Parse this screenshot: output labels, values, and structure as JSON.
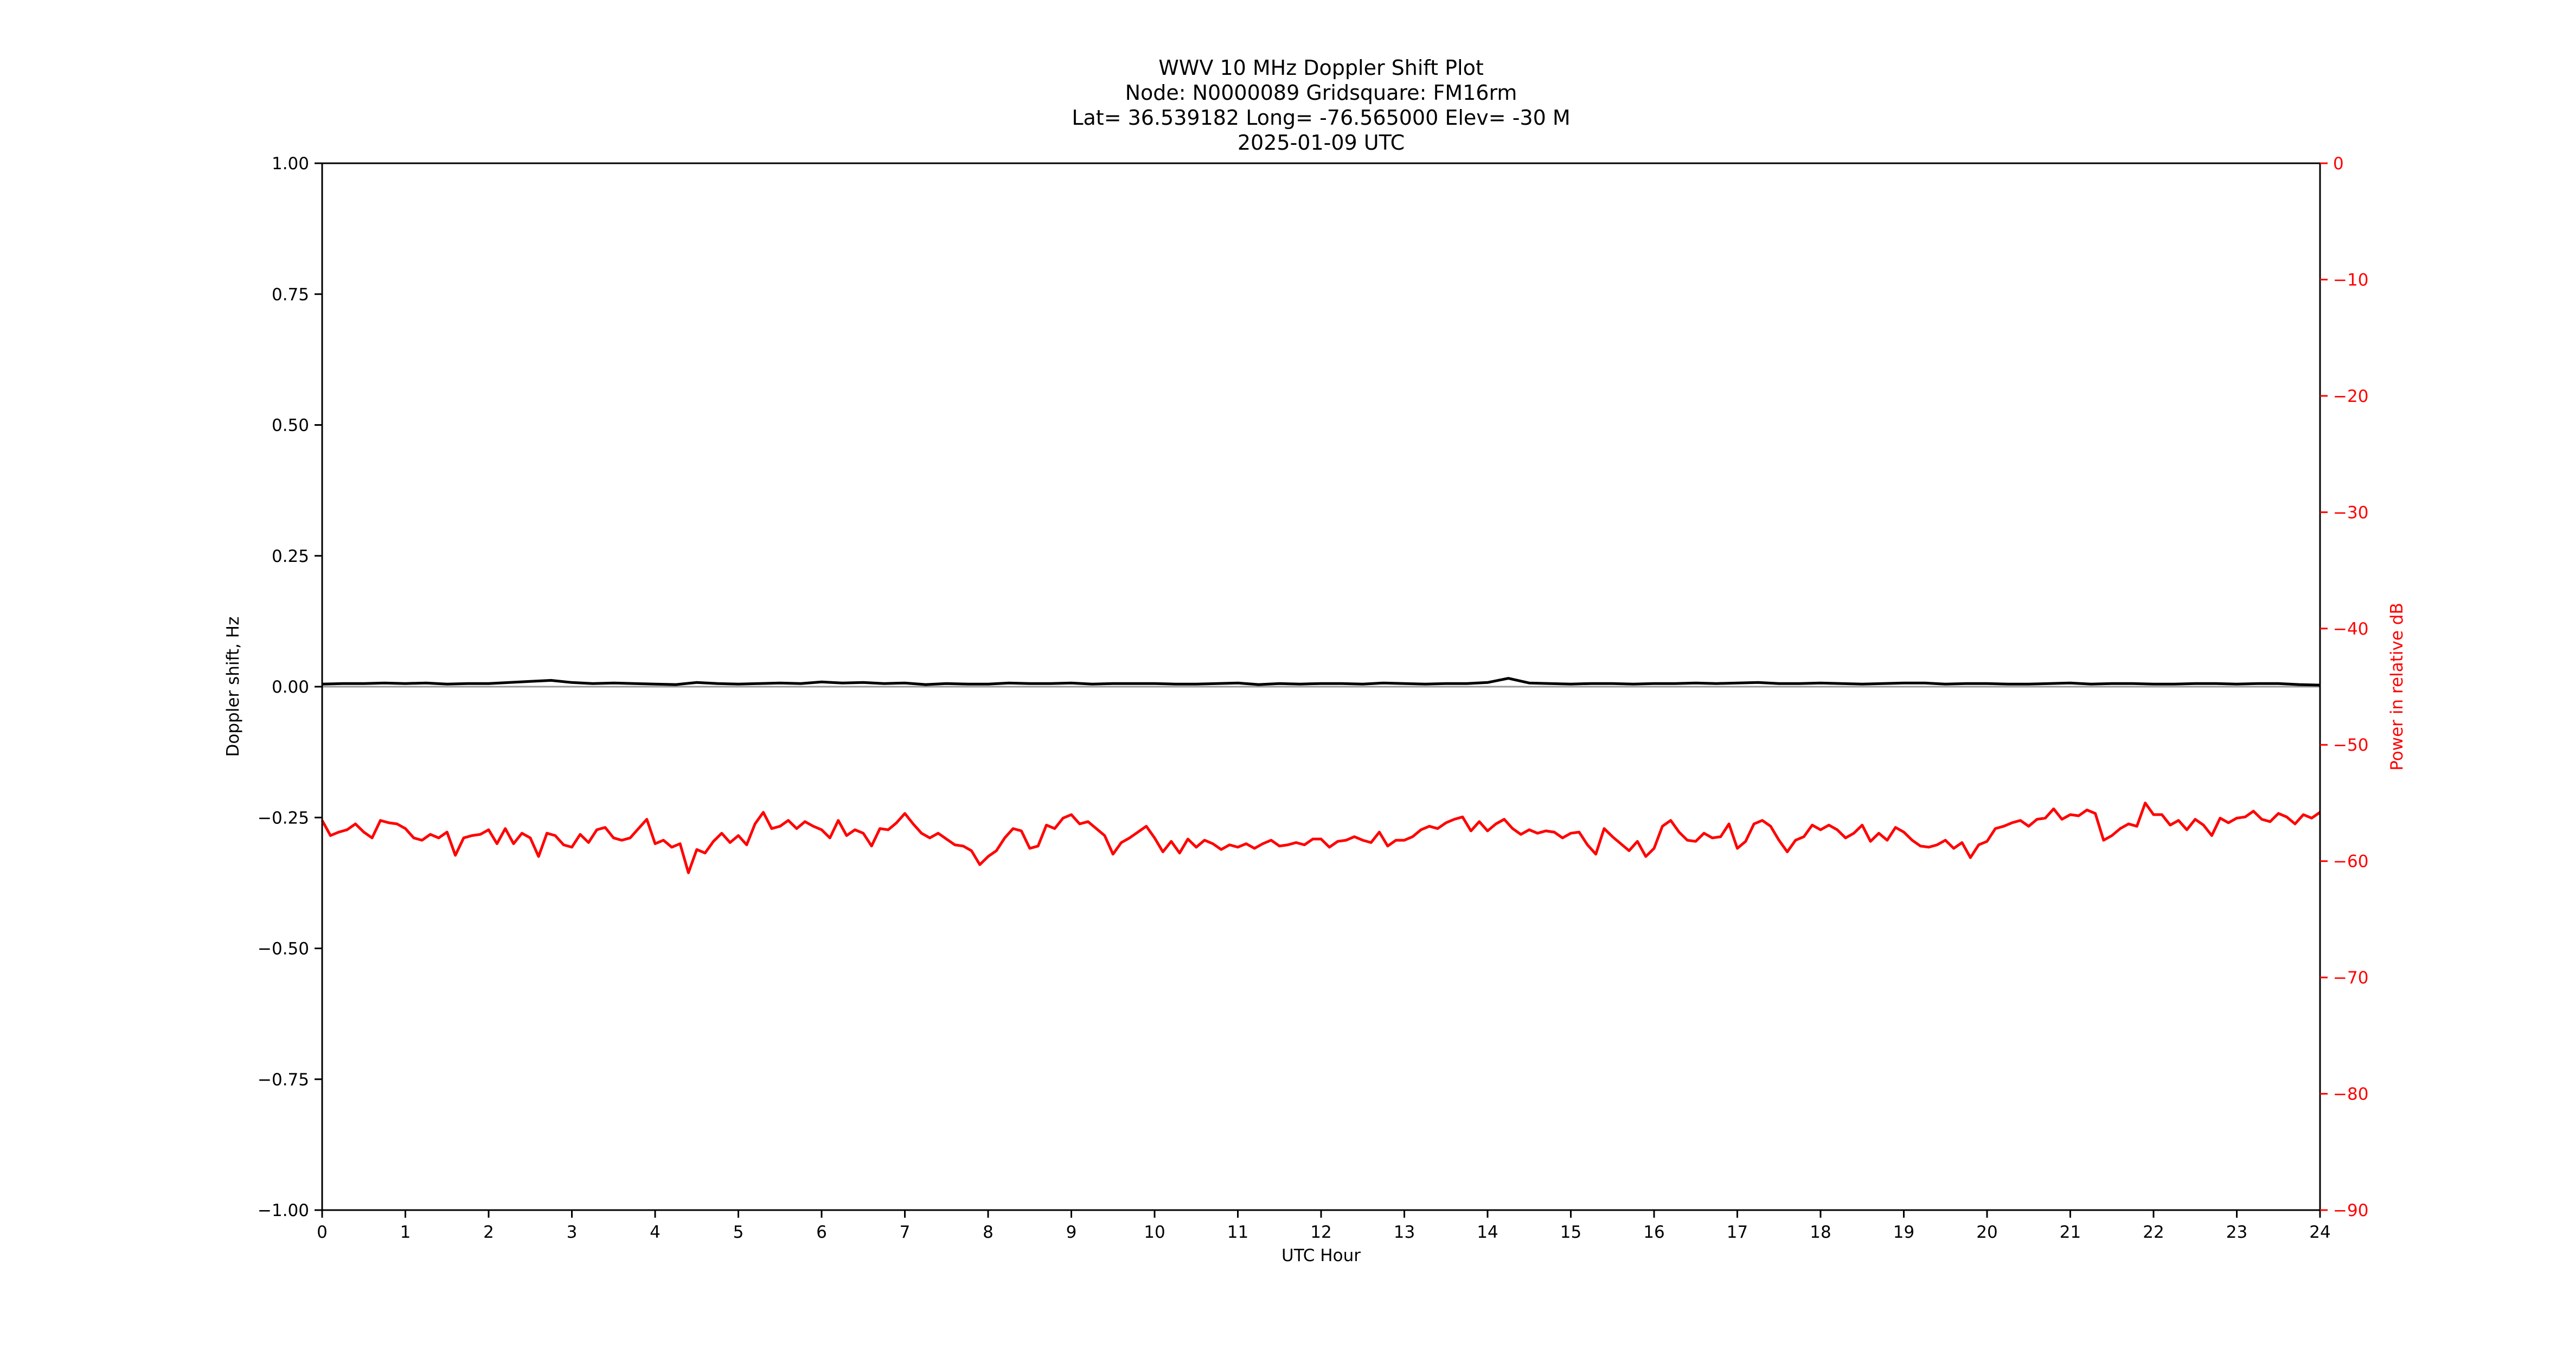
{
  "chart_data": {
    "type": "line",
    "title_lines": [
      "WWV 10 MHz Doppler Shift Plot",
      "Node:  N0000089     Gridsquare:  FM16rm",
      "Lat= 36.539182    Long= -76.565000    Elev= -30 M",
      "2025-01-09  UTC"
    ],
    "xlabel": "UTC Hour",
    "ylabel": "Doppler shift, Hz",
    "y2label": "Power in relative dB",
    "xlim": [
      0,
      24
    ],
    "ylim": [
      -1.0,
      1.0
    ],
    "y2lim": [
      -90,
      0
    ],
    "x_ticks": [
      "0",
      "1",
      "2",
      "3",
      "4",
      "5",
      "6",
      "7",
      "8",
      "9",
      "10",
      "11",
      "12",
      "13",
      "14",
      "15",
      "16",
      "17",
      "18",
      "19",
      "20",
      "21",
      "22",
      "23",
      "24"
    ],
    "y_ticks": [
      "1.00",
      "0.75",
      "0.50",
      "0.25",
      "0.00",
      "−0.25",
      "−0.50",
      "−0.75",
      "−1.00"
    ],
    "y2_ticks": [
      "0",
      "−10",
      "−20",
      "−30",
      "−40",
      "−50",
      "−60",
      "−70",
      "−80",
      "−90"
    ],
    "colors": {
      "doppler": "#000000",
      "power": "#ff0000",
      "axis": "#000000",
      "right_axis": "#ff0000",
      "zero_line": "#999999"
    },
    "series": [
      {
        "axis": "left",
        "x": [
          0,
          0.25,
          0.5,
          0.75,
          1,
          1.25,
          1.5,
          1.75,
          2,
          2.25,
          2.5,
          2.75,
          3,
          3.25,
          3.5,
          3.75,
          4,
          4.25,
          4.5,
          4.75,
          5,
          5.25,
          5.5,
          5.75,
          6,
          6.25,
          6.5,
          6.75,
          7,
          7.25,
          7.5,
          7.75,
          8,
          8.25,
          8.5,
          8.75,
          9,
          9.25,
          9.5,
          9.75,
          10,
          10.25,
          10.5,
          10.75,
          11,
          11.25,
          11.5,
          11.75,
          12,
          12.25,
          12.5,
          12.75,
          13,
          13.25,
          13.5,
          13.75,
          14,
          14.25,
          14.5,
          14.75,
          15,
          15.25,
          15.5,
          15.75,
          16,
          16.25,
          16.5,
          16.75,
          17,
          17.25,
          17.5,
          17.75,
          18,
          18.25,
          18.5,
          18.75,
          19,
          19.25,
          19.5,
          19.75,
          20,
          20.25,
          20.5,
          20.75,
          21,
          21.25,
          21.5,
          21.75,
          22,
          22.25,
          22.5,
          22.75,
          23,
          23.25,
          23.5,
          23.75,
          24
        ],
        "values": [
          0.005,
          0.006,
          0.006,
          0.007,
          0.006,
          0.007,
          0.005,
          0.006,
          0.006,
          0.008,
          0.01,
          0.012,
          0.008,
          0.006,
          0.007,
          0.006,
          0.005,
          0.004,
          0.008,
          0.006,
          0.005,
          0.006,
          0.007,
          0.006,
          0.009,
          0.007,
          0.008,
          0.006,
          0.007,
          0.004,
          0.006,
          0.005,
          0.005,
          0.007,
          0.006,
          0.006,
          0.007,
          0.005,
          0.006,
          0.006,
          0.006,
          0.005,
          0.005,
          0.006,
          0.007,
          0.004,
          0.006,
          0.005,
          0.006,
          0.006,
          0.005,
          0.007,
          0.006,
          0.005,
          0.006,
          0.006,
          0.008,
          0.016,
          0.007,
          0.006,
          0.005,
          0.006,
          0.006,
          0.005,
          0.006,
          0.006,
          0.007,
          0.006,
          0.007,
          0.008,
          0.006,
          0.006,
          0.007,
          0.006,
          0.005,
          0.006,
          0.007,
          0.007,
          0.005,
          0.006,
          0.006,
          0.005,
          0.005,
          0.006,
          0.007,
          0.005,
          0.006,
          0.006,
          0.005,
          0.005,
          0.006,
          0.006,
          0.005,
          0.006,
          0.006,
          0.004,
          0.003
        ]
      },
      {
        "axis": "right",
        "x": [
          0,
          0.1,
          0.2,
          0.3,
          0.4,
          0.5,
          0.6,
          0.7,
          0.8,
          0.9,
          1,
          1.1,
          1.2,
          1.3,
          1.4,
          1.5,
          1.6,
          1.7,
          1.8,
          1.9,
          2,
          2.1,
          2.2,
          2.3,
          2.4,
          2.5,
          2.6,
          2.7,
          2.8,
          2.9,
          3,
          3.1,
          3.2,
          3.3,
          3.4,
          3.5,
          3.6,
          3.7,
          3.8,
          3.9,
          4,
          4.1,
          4.2,
          4.3,
          4.4,
          4.5,
          4.6,
          4.7,
          4.8,
          4.9,
          5,
          5.1,
          5.2,
          5.3,
          5.4,
          5.5,
          5.6,
          5.7,
          5.8,
          5.9,
          6,
          6.1,
          6.2,
          6.3,
          6.4,
          6.5,
          6.6,
          6.7,
          6.8,
          6.9,
          7,
          7.1,
          7.2,
          7.3,
          7.4,
          7.5,
          7.6,
          7.7,
          7.8,
          7.9,
          8,
          8.1,
          8.2,
          8.3,
          8.4,
          8.5,
          8.6,
          8.7,
          8.8,
          8.9,
          9,
          9.1,
          9.2,
          9.3,
          9.4,
          9.5,
          9.6,
          9.7,
          9.8,
          9.9,
          10,
          10.1,
          10.2,
          10.3,
          10.4,
          10.5,
          10.6,
          10.7,
          10.8,
          10.9,
          11,
          11.1,
          11.2,
          11.3,
          11.4,
          11.5,
          11.6,
          11.7,
          11.8,
          11.9,
          12,
          12.1,
          12.2,
          12.3,
          12.4,
          12.5,
          12.6,
          12.7,
          12.8,
          12.9,
          13,
          13.1,
          13.2,
          13.3,
          13.4,
          13.5,
          13.6,
          13.7,
          13.8,
          13.9,
          14,
          14.1,
          14.2,
          14.3,
          14.4,
          14.5,
          14.6,
          14.7,
          14.8,
          14.9,
          15,
          15.1,
          15.2,
          15.3,
          15.4,
          15.5,
          15.6,
          15.7,
          15.8,
          15.9,
          16,
          16.1,
          16.2,
          16.3,
          16.4,
          16.5,
          16.6,
          16.7,
          16.8,
          16.9,
          17,
          17.1,
          17.2,
          17.3,
          17.4,
          17.5,
          17.6,
          17.7,
          17.8,
          17.9,
          18,
          18.1,
          18.2,
          18.3,
          18.4,
          18.5,
          18.6,
          18.7,
          18.8,
          18.9,
          19,
          19.1,
          19.2,
          19.3,
          19.4,
          19.5,
          19.6,
          19.7,
          19.8,
          19.9,
          20,
          20.1,
          20.2,
          20.3,
          20.4,
          20.5,
          20.6,
          20.7,
          20.8,
          20.9,
          21,
          21.1,
          21.2,
          21.3,
          21.4,
          21.5,
          21.6,
          21.7,
          21.8,
          21.9,
          22,
          22.1,
          22.2,
          22.3,
          22.4,
          22.5,
          22.6,
          22.7,
          22.8,
          22.9,
          23,
          23.1,
          23.2,
          23.3,
          23.4,
          23.5,
          23.6,
          23.7,
          23.8,
          23.9,
          24
        ],
        "values": [
          -56.5,
          -57.8,
          -57.5,
          -57.3,
          -56.8,
          -57.5,
          -58.0,
          -56.5,
          -56.7,
          -56.8,
          -57.2,
          -58.0,
          -58.2,
          -57.7,
          -58.0,
          -57.5,
          -59.5,
          -58.0,
          -57.8,
          -57.7,
          -57.3,
          -58.5,
          -57.2,
          -58.5,
          -57.6,
          -58.0,
          -59.6,
          -57.6,
          -57.8,
          -58.6,
          -58.8,
          -57.7,
          -58.4,
          -57.3,
          -57.1,
          -58.0,
          -58.2,
          -58.0,
          -57.2,
          -56.4,
          -58.5,
          -58.2,
          -58.8,
          -58.5,
          -61.0,
          -59.0,
          -59.3,
          -58.3,
          -57.6,
          -58.4,
          -57.8,
          -58.6,
          -56.8,
          -55.8,
          -57.2,
          -57.0,
          -56.5,
          -57.2,
          -56.6,
          -57.0,
          -57.3,
          -58.0,
          -56.5,
          -57.8,
          -57.3,
          -57.6,
          -58.7,
          -57.2,
          -57.3,
          -56.7,
          -55.9,
          -56.8,
          -57.6,
          -58.0,
          -57.6,
          -58.1,
          -58.6,
          -58.7,
          -59.1,
          -60.3,
          -59.6,
          -59.1,
          -58.0,
          -57.2,
          -57.4,
          -58.9,
          -58.7,
          -56.9,
          -57.2,
          -56.3,
          -56.0,
          -56.8,
          -56.6,
          -57.2,
          -57.8,
          -59.4,
          -58.4,
          -58.0,
          -57.5,
          -57.0,
          -58.0,
          -59.2,
          -58.3,
          -59.3,
          -58.1,
          -58.8,
          -58.2,
          -58.5,
          -59.0,
          -58.6,
          -58.8,
          -58.5,
          -58.9,
          -58.5,
          -58.2,
          -58.7,
          -58.6,
          -58.4,
          -58.6,
          -58.1,
          -58.1,
          -58.8,
          -58.3,
          -58.2,
          -57.9,
          -58.2,
          -58.4,
          -57.5,
          -58.7,
          -58.2,
          -58.2,
          -57.9,
          -57.3,
          -57.0,
          -57.2,
          -56.7,
          -56.4,
          -56.2,
          -57.4,
          -56.6,
          -57.4,
          -56.8,
          -56.4,
          -57.2,
          -57.7,
          -57.3,
          -57.6,
          -57.4,
          -57.5,
          -58.0,
          -57.6,
          -57.5,
          -58.6,
          -59.4,
          -57.2,
          -57.9,
          -58.5,
          -59.1,
          -58.3,
          -59.6,
          -58.9,
          -57.0,
          -56.5,
          -57.5,
          -58.2,
          -58.3,
          -57.6,
          -58.0,
          -57.9,
          -56.8,
          -58.9,
          -58.3,
          -56.8,
          -56.5,
          -57.0,
          -58.2,
          -59.2,
          -58.2,
          -57.9,
          -56.9,
          -57.3,
          -56.9,
          -57.3,
          -58.0,
          -57.6,
          -56.9,
          -58.3,
          -57.6,
          -58.2,
          -57.1,
          -57.5,
          -58.2,
          -58.7,
          -58.8,
          -58.6,
          -58.2,
          -58.9,
          -58.4,
          -59.7,
          -58.6,
          -58.3,
          -57.2,
          -57.0,
          -56.7,
          -56.5,
          -57.0,
          -56.4,
          -56.3,
          -55.5,
          -56.4,
          -56.0,
          -56.1,
          -55.6,
          -55.9,
          -58.2,
          -57.8,
          -57.2,
          -56.8,
          -57.0,
          -55.0,
          -56.0,
          -56.0,
          -56.9,
          -56.5,
          -57.3,
          -56.4,
          -56.9,
          -57.8,
          -56.3,
          -56.7,
          -56.3,
          -56.2,
          -55.7,
          -56.4,
          -56.6,
          -55.9,
          -56.2,
          -56.8,
          -56.0,
          -56.3,
          -55.8
        ]
      }
    ]
  }
}
